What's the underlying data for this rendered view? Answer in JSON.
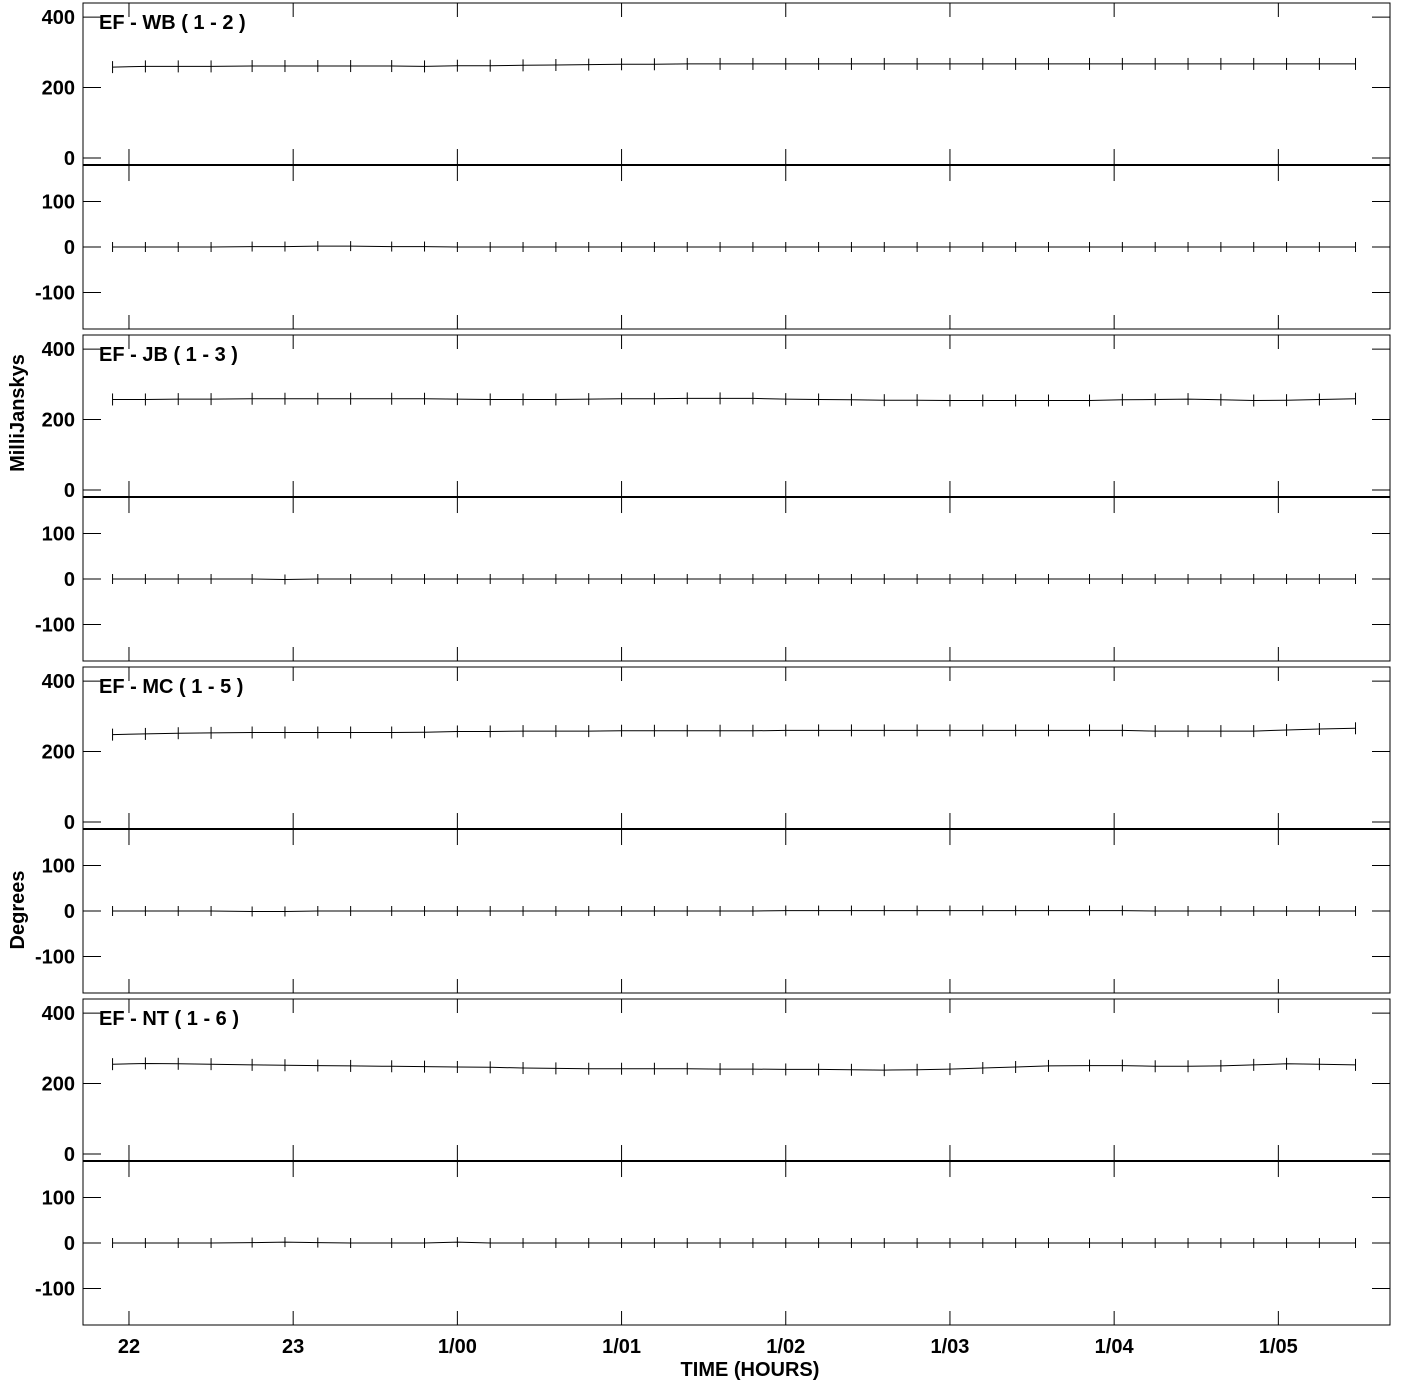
{
  "chart_data": {
    "type": "line",
    "xlabel": "TIME (HOURS)",
    "ylabel_amplitude": "MilliJanskys",
    "ylabel_phase": "Degrees",
    "x_ticks": [
      {
        "label": "22",
        "hours": 22
      },
      {
        "label": "23",
        "hours": 23
      },
      {
        "label": "1/00",
        "hours": 24
      },
      {
        "label": "1/01",
        "hours": 25
      },
      {
        "label": "1/02",
        "hours": 26
      },
      {
        "label": "1/03",
        "hours": 27
      },
      {
        "label": "1/04",
        "hours": 28
      },
      {
        "label": "1/05",
        "hours": 29
      }
    ],
    "xlim": [
      21.72,
      29.68
    ],
    "amp_ylim": [
      -20,
      440
    ],
    "amp_ticks": [
      {
        "label": "400",
        "v": 400
      },
      {
        "label": "200",
        "v": 200
      },
      {
        "label": "0",
        "v": 0
      }
    ],
    "phase_ylim": [
      -180,
      180
    ],
    "phase_ticks": [
      {
        "label": "100",
        "v": 100
      },
      {
        "label": "0",
        "v": 0
      },
      {
        "label": "-100",
        "v": -100
      }
    ],
    "time_samples": [
      21.9,
      22.1,
      22.3,
      22.5,
      22.75,
      22.95,
      23.15,
      23.35,
      23.6,
      23.8,
      24.0,
      24.2,
      24.4,
      24.6,
      24.8,
      25.0,
      25.2,
      25.4,
      25.6,
      25.8,
      26.0,
      26.2,
      26.4,
      26.6,
      26.8,
      27.0,
      27.2,
      27.4,
      27.6,
      27.85,
      28.05,
      28.25,
      28.45,
      28.65,
      28.85,
      29.05,
      29.25,
      29.47
    ],
    "panels": [
      {
        "title": "EF - WB ( 1 - 2 )",
        "amplitude": [
          258,
          260,
          260,
          260,
          261,
          261,
          261,
          261,
          261,
          260,
          262,
          262,
          263,
          264,
          265,
          266,
          266,
          267,
          267,
          267,
          267,
          267,
          267,
          267,
          267,
          267,
          267,
          267,
          267,
          267,
          267,
          267,
          267,
          267,
          267,
          267,
          267,
          267
        ],
        "phase": [
          0,
          0,
          0,
          0,
          1,
          1,
          2,
          2,
          1,
          1,
          0,
          0,
          0,
          0,
          0,
          0,
          0,
          0,
          0,
          0,
          0,
          0,
          0,
          0,
          0,
          0,
          0,
          0,
          0,
          0,
          0,
          0,
          0,
          0,
          0,
          0,
          0,
          0
        ]
      },
      {
        "title": "EF - JB ( 1 - 3 )",
        "amplitude": [
          257,
          257,
          258,
          258,
          259,
          259,
          259,
          259,
          259,
          259,
          258,
          257,
          257,
          257,
          258,
          259,
          259,
          260,
          260,
          260,
          258,
          257,
          256,
          255,
          255,
          254,
          254,
          254,
          254,
          254,
          256,
          257,
          258,
          256,
          254,
          255,
          257,
          259
        ],
        "phase": [
          0,
          0,
          0,
          0,
          0,
          -1,
          0,
          0,
          0,
          0,
          0,
          0,
          0,
          0,
          0,
          0,
          0,
          0,
          0,
          0,
          0,
          0,
          0,
          0,
          0,
          0,
          0,
          0,
          0,
          0,
          0,
          0,
          0,
          0,
          0,
          0,
          0,
          0
        ]
      },
      {
        "title": "EF - MC ( 1 - 5 )",
        "amplitude": [
          248,
          250,
          252,
          253,
          254,
          254,
          254,
          254,
          254,
          255,
          257,
          257,
          258,
          258,
          258,
          259,
          259,
          259,
          259,
          259,
          260,
          260,
          260,
          260,
          260,
          260,
          260,
          260,
          260,
          260,
          260,
          258,
          258,
          258,
          258,
          261,
          264,
          266
        ],
        "phase": [
          0,
          0,
          0,
          0,
          -1,
          -1,
          0,
          0,
          0,
          0,
          0,
          0,
          0,
          0,
          0,
          0,
          0,
          0,
          0,
          0,
          1,
          1,
          1,
          1,
          1,
          1,
          1,
          1,
          1,
          1,
          1,
          0,
          0,
          0,
          0,
          0,
          0,
          0
        ]
      },
      {
        "title": "EF - NT ( 1 - 6 )",
        "amplitude": [
          255,
          257,
          256,
          255,
          253,
          252,
          251,
          250,
          249,
          248,
          247,
          246,
          244,
          243,
          242,
          242,
          242,
          242,
          241,
          241,
          240,
          240,
          239,
          238,
          239,
          241,
          244,
          247,
          250,
          251,
          251,
          249,
          249,
          250,
          253,
          256,
          255,
          253
        ],
        "phase": [
          0,
          0,
          0,
          0,
          1,
          2,
          1,
          0,
          0,
          0,
          2,
          0,
          0,
          0,
          0,
          0,
          0,
          0,
          0,
          0,
          0,
          0,
          0,
          0,
          0,
          0,
          0,
          0,
          0,
          0,
          0,
          0,
          0,
          0,
          0,
          0,
          0,
          0
        ]
      }
    ]
  }
}
